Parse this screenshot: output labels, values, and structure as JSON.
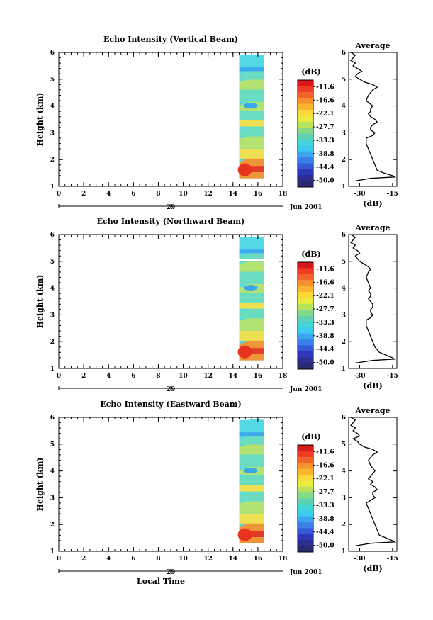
{
  "chart_data": [
    {
      "type": "heatmap",
      "title": "Echo Intensity (Vertical Beam)",
      "ylabel": "Height (km)",
      "xlim": [
        0,
        18
      ],
      "ylim": [
        1,
        6
      ],
      "x_ticks": [
        "0",
        "2",
        "4",
        "6",
        "8",
        "10",
        "12",
        "14",
        "16",
        "18"
      ],
      "y_ticks": [
        "1",
        "2",
        "3",
        "4",
        "5",
        "6"
      ],
      "date_day": "29",
      "date_month": "Jun 2001",
      "data_time_range": [
        14.5,
        16.5
      ],
      "data_height_range": [
        1.3,
        5.9
      ],
      "colorbar": {
        "label": "(dB)",
        "ticks": [
          "-11.6",
          "-16.6",
          "-22.1",
          "-27.7",
          "-33.3",
          "-38.8",
          "-44.4",
          "-50.0"
        ]
      },
      "average_profile": {
        "title": "Average",
        "xlabel": "(dB)",
        "x_ticks": [
          "-30",
          "-15"
        ],
        "y_ticks": [
          "1",
          "2",
          "3",
          "4",
          "5",
          "6"
        ],
        "xlim": [
          -35,
          -13
        ],
        "ylim": [
          1,
          6
        ],
        "height": [
          1.2,
          1.3,
          1.35,
          1.4,
          1.5,
          1.6,
          1.8,
          2.0,
          2.2,
          2.4,
          2.6,
          2.8,
          2.9,
          3.0,
          3.1,
          3.2,
          3.3,
          3.4,
          3.5,
          3.6,
          3.7,
          3.8,
          3.9,
          4.0,
          4.2,
          4.4,
          4.6,
          4.7,
          4.8,
          4.9,
          5.0,
          5.1,
          5.2,
          5.3,
          5.4,
          5.5,
          5.6,
          5.7,
          5.8,
          5.9,
          6.0
        ],
        "value": [
          -32,
          -25,
          -14,
          -15,
          -19,
          -22,
          -23,
          -24,
          -25,
          -26,
          -27,
          -27,
          -24,
          -23,
          -25,
          -25,
          -24,
          -22,
          -23,
          -25,
          -26,
          -25,
          -25,
          -24,
          -27,
          -26,
          -24,
          -22,
          -24,
          -28,
          -30,
          -32,
          -31,
          -29,
          -31,
          -33,
          -32,
          -34,
          -33,
          -32,
          -34
        ]
      }
    },
    {
      "type": "heatmap",
      "title": "Echo Intensity (Northward Beam)",
      "ylabel": "Height (km)",
      "xlim": [
        0,
        18
      ],
      "ylim": [
        1,
        6
      ],
      "x_ticks": [
        "0",
        "2",
        "4",
        "6",
        "8",
        "10",
        "12",
        "14",
        "16",
        "18"
      ],
      "y_ticks": [
        "1",
        "2",
        "3",
        "4",
        "5",
        "6"
      ],
      "date_day": "29",
      "date_month": "Jun 2001",
      "data_time_range": [
        14.5,
        16.5
      ],
      "data_height_range": [
        1.3,
        5.9
      ],
      "colorbar": {
        "label": "(dB)",
        "ticks": [
          "-11.6",
          "-16.6",
          "-22.1",
          "-27.7",
          "-33.3",
          "-38.8",
          "-44.4",
          "-50.0"
        ]
      },
      "average_profile": {
        "title": "Average",
        "xlabel": "(dB)",
        "x_ticks": [
          "-30",
          "-15"
        ],
        "y_ticks": [
          "1",
          "2",
          "3",
          "4",
          "5",
          "6"
        ],
        "xlim": [
          -35,
          -13
        ],
        "ylim": [
          1,
          6
        ],
        "height": [
          1.2,
          1.3,
          1.35,
          1.4,
          1.5,
          1.6,
          1.8,
          2.0,
          2.2,
          2.4,
          2.6,
          2.8,
          2.9,
          3.0,
          3.1,
          3.2,
          3.3,
          3.4,
          3.5,
          3.6,
          3.7,
          3.8,
          3.9,
          4.0,
          4.2,
          4.4,
          4.6,
          4.7,
          4.8,
          4.9,
          5.0,
          5.1,
          5.2,
          5.3,
          5.4,
          5.5,
          5.6,
          5.7,
          5.8,
          5.9,
          6.0
        ],
        "value": [
          -32,
          -24,
          -14,
          -15,
          -18,
          -21,
          -23,
          -24,
          -25,
          -26,
          -27,
          -27,
          -25,
          -24,
          -25,
          -25,
          -24,
          -24,
          -25,
          -26,
          -25,
          -25,
          -26,
          -25,
          -26,
          -27,
          -26,
          -25,
          -26,
          -28,
          -30,
          -31,
          -32,
          -30,
          -31,
          -33,
          -32,
          -34,
          -33,
          -32,
          -34
        ]
      }
    },
    {
      "type": "heatmap",
      "title": "Echo Intensity (Eastward Beam)",
      "ylabel": "Height (km)",
      "xlabel": "Local Time",
      "xlim": [
        0,
        18
      ],
      "ylim": [
        1,
        6
      ],
      "x_ticks": [
        "0",
        "2",
        "4",
        "6",
        "8",
        "10",
        "12",
        "14",
        "16",
        "18"
      ],
      "y_ticks": [
        "1",
        "2",
        "3",
        "4",
        "5",
        "6"
      ],
      "date_day": "29",
      "date_month": "Jun 2001",
      "data_time_range": [
        14.5,
        16.5
      ],
      "data_height_range": [
        1.3,
        5.9
      ],
      "colorbar": {
        "label": "(dB)",
        "ticks": [
          "-11.6",
          "-16.6",
          "-22.1",
          "-27.7",
          "-33.3",
          "-38.8",
          "-44.4",
          "-50.0"
        ]
      },
      "average_profile": {
        "title": "Average",
        "xlabel": "(dB)",
        "x_ticks": [
          "-30",
          "-15"
        ],
        "y_ticks": [
          "1",
          "2",
          "3",
          "4",
          "5",
          "6"
        ],
        "xlim": [
          -35,
          -13
        ],
        "ylim": [
          1,
          6
        ],
        "height": [
          1.2,
          1.3,
          1.35,
          1.4,
          1.5,
          1.6,
          1.8,
          2.0,
          2.2,
          2.4,
          2.6,
          2.8,
          2.9,
          3.0,
          3.1,
          3.2,
          3.3,
          3.4,
          3.5,
          3.6,
          3.7,
          3.8,
          3.9,
          4.0,
          4.2,
          4.4,
          4.6,
          4.7,
          4.8,
          4.9,
          5.0,
          5.1,
          5.2,
          5.3,
          5.4,
          5.5,
          5.6,
          5.7,
          5.8,
          5.9,
          6.0
        ],
        "value": [
          -32,
          -25,
          -14,
          -15,
          -18,
          -21,
          -22,
          -23,
          -24,
          -25,
          -26,
          -27,
          -25,
          -23,
          -24,
          -24,
          -22,
          -23,
          -25,
          -24,
          -26,
          -25,
          -24,
          -23,
          -25,
          -26,
          -24,
          -22,
          -24,
          -28,
          -30,
          -31,
          -33,
          -30,
          -31,
          -33,
          -32,
          -34,
          -33,
          -32,
          -34
        ]
      }
    }
  ],
  "colorbar_colors": [
    "#d7191c",
    "#ee3b24",
    "#f4632b",
    "#f7902f",
    "#fbb530",
    "#fcd838",
    "#e8ec3f",
    "#b8e25a",
    "#86d98a",
    "#5ed2b1",
    "#44d5d6",
    "#3ec9ee",
    "#3ba6ee",
    "#3a80e6",
    "#3559d4",
    "#2e37b8",
    "#2d2f8f",
    "#2b2a6e"
  ],
  "heat_colors": {
    "red": "#e8341f",
    "orange": "#f7902f",
    "yellow": "#f5e04a",
    "lightgreen": "#b6e36c",
    "aqua": "#6cdcc0",
    "cyan": "#55d8e6",
    "blue": "#3aa6ee"
  }
}
